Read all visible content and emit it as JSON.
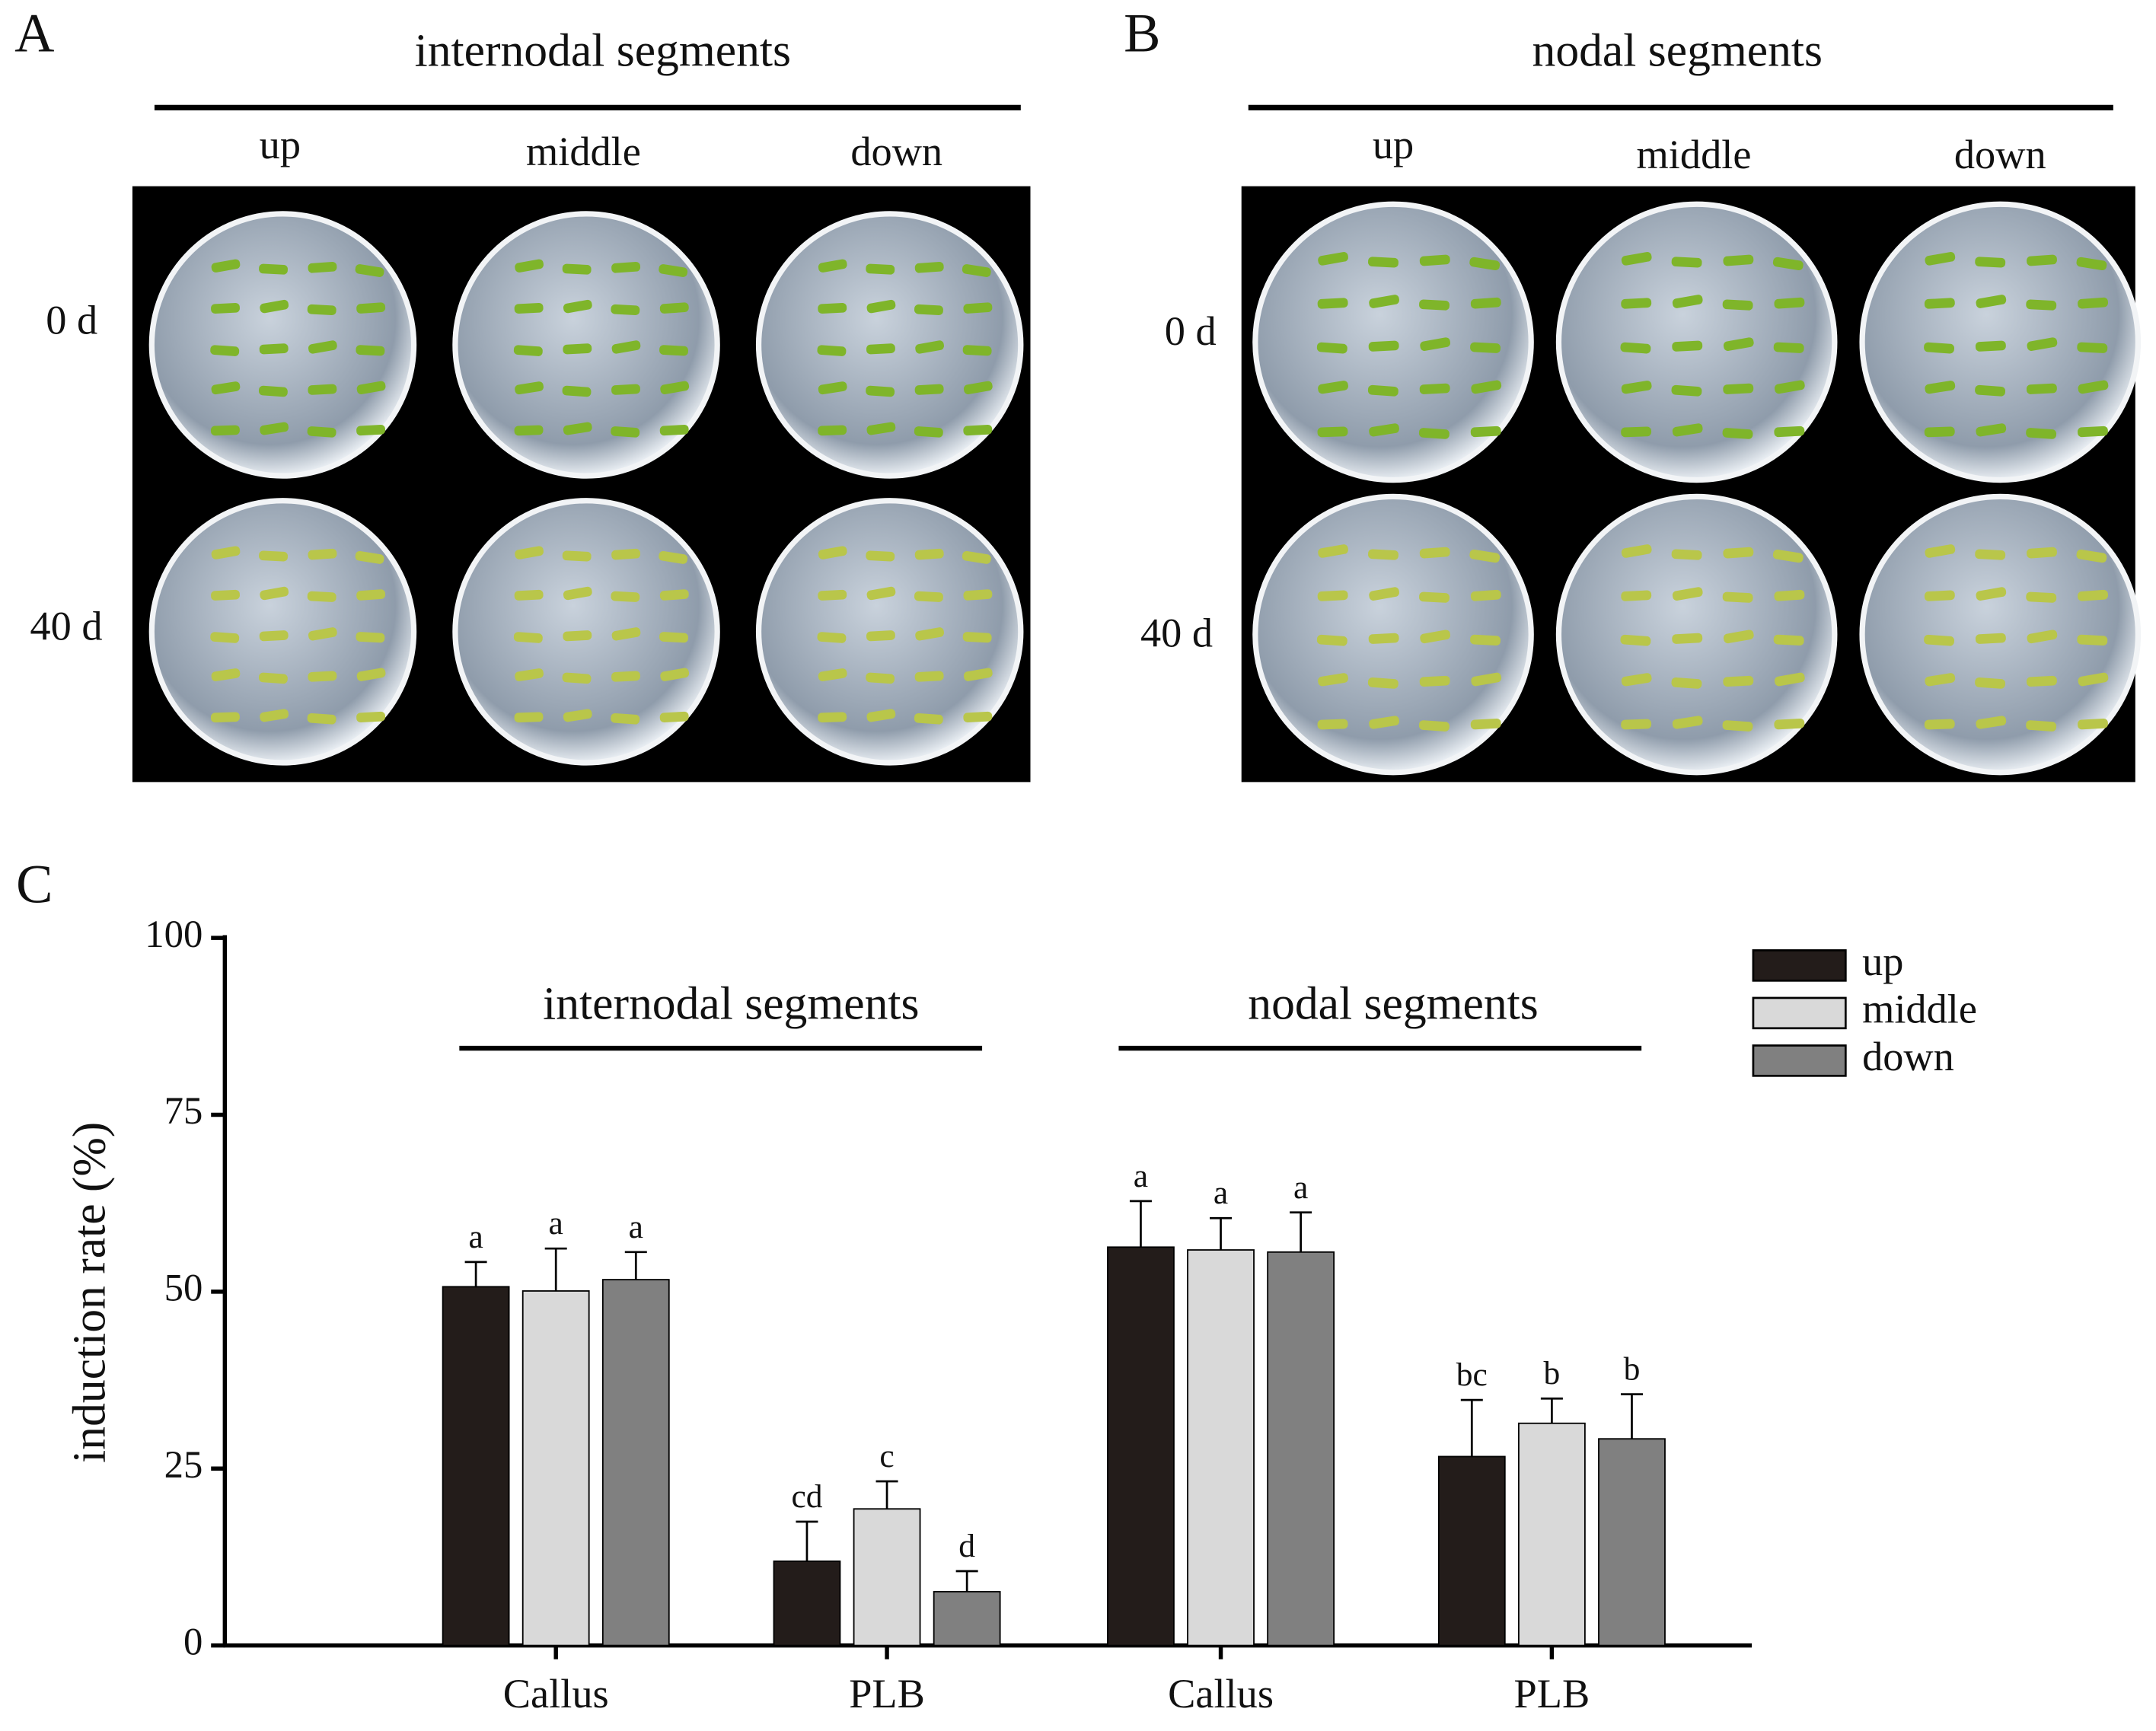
{
  "panels": [
    {
      "label": "A",
      "title": "internodal segments",
      "columns": [
        "up",
        "middle",
        "down"
      ],
      "rows": [
        "0 d",
        "40 d"
      ]
    },
    {
      "label": "B",
      "title": "nodal segments",
      "columns": [
        "up",
        "middle",
        "down"
      ],
      "rows": [
        "0 d",
        "40 d"
      ]
    }
  ],
  "chart_data": {
    "type": "bar",
    "panel_label": "C",
    "ylabel": "induction rate (%)",
    "categories": [
      "Callus",
      "PLB",
      "Callus",
      "PLB"
    ],
    "group_labels": [
      "internodal segments",
      "nodal segments"
    ],
    "ylim": [
      0,
      100
    ],
    "yticks": [
      0,
      25,
      50,
      75,
      100
    ],
    "series": [
      {
        "name": "up",
        "color": "#231c1a",
        "values": [
          50.7,
          11.9,
          56.3,
          26.7
        ],
        "errors": [
          3.5,
          5.6,
          6.5,
          8.0
        ],
        "letters": [
          "a",
          "cd",
          "a",
          "bc"
        ]
      },
      {
        "name": "middle",
        "color": "#d9d9d9",
        "values": [
          50.1,
          19.3,
          55.9,
          31.4
        ],
        "errors": [
          6.0,
          3.9,
          4.5,
          3.5
        ],
        "letters": [
          "a",
          "c",
          "a",
          "b"
        ]
      },
      {
        "name": "down",
        "color": "#808080",
        "values": [
          51.7,
          7.6,
          55.6,
          29.2
        ],
        "errors": [
          3.9,
          2.9,
          5.6,
          6.3
        ],
        "letters": [
          "a",
          "d",
          "a",
          "b"
        ]
      }
    ]
  }
}
